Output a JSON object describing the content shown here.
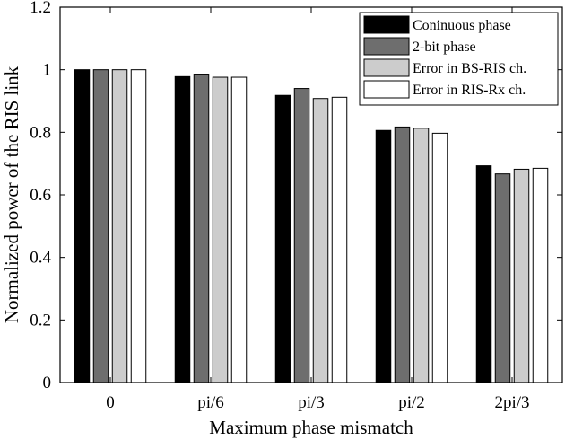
{
  "chart_data": {
    "type": "bar",
    "title": "",
    "xlabel": "Maximum phase mismatch",
    "ylabel": "Normalized power of the RIS link",
    "categories": [
      "0",
      "pi/6",
      "pi/3",
      "pi/2",
      "2pi/3"
    ],
    "ylim": [
      0,
      1.2
    ],
    "yticks": [
      "0",
      "0.2",
      "0.4",
      "0.6",
      "0.8",
      "1",
      "1.2"
    ],
    "grid": false,
    "legend_position": "top-right",
    "series": [
      {
        "name": "Coninuous phase",
        "color": "#000000",
        "values": [
          1.0,
          0.978,
          0.918,
          0.806,
          0.693
        ]
      },
      {
        "name": "2-bit phase",
        "color": "#6e6e6e",
        "values": [
          1.0,
          0.986,
          0.94,
          0.817,
          0.667
        ]
      },
      {
        "name": "Error in BS-RIS ch.",
        "color": "#cccccc",
        "values": [
          1.0,
          0.976,
          0.908,
          0.813,
          0.682
        ]
      },
      {
        "name": "Error in RIS-Rx ch.",
        "color": "#ffffff",
        "values": [
          1.0,
          0.976,
          0.912,
          0.797,
          0.685
        ]
      }
    ]
  }
}
